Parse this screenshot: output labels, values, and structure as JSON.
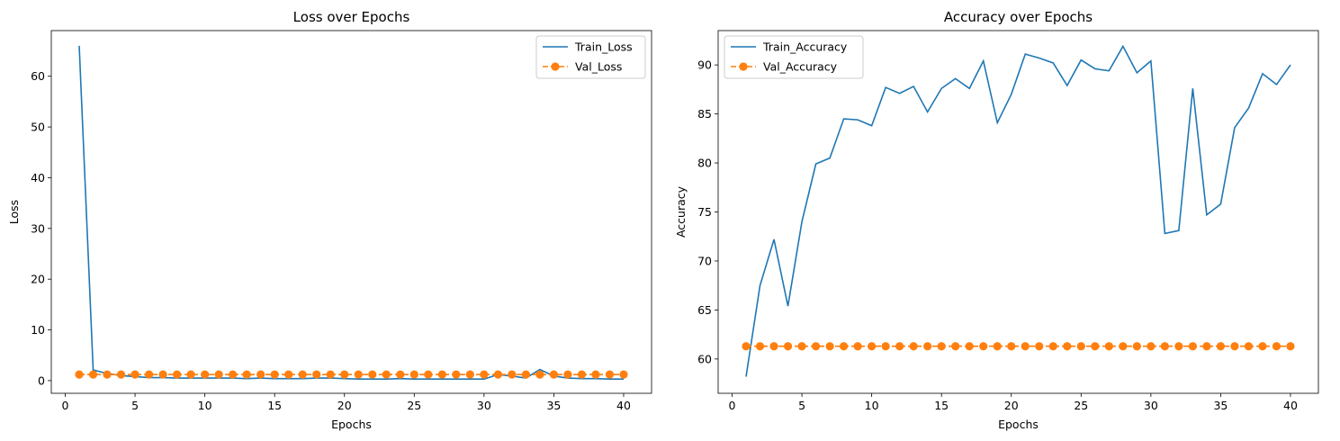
{
  "chart_data": [
    {
      "type": "line",
      "title": "Loss over Epochs",
      "xlabel": "Epochs",
      "ylabel": "Loss",
      "xlim": [
        -1,
        42
      ],
      "ylim": [
        -2.5,
        69
      ],
      "xticks": [
        0,
        5,
        10,
        15,
        20,
        25,
        30,
        35,
        40
      ],
      "yticks": [
        0,
        10,
        20,
        30,
        40,
        50,
        60
      ],
      "grid": false,
      "legend_position": "upper right",
      "series": [
        {
          "name": "Train_Loss",
          "color": "#1f77b4",
          "style": "solid",
          "marker": "none",
          "x": [
            1,
            2,
            3,
            4,
            5,
            6,
            7,
            8,
            9,
            10,
            11,
            12,
            13,
            14,
            15,
            16,
            17,
            18,
            19,
            20,
            21,
            22,
            23,
            24,
            25,
            26,
            27,
            28,
            29,
            30,
            31,
            32,
            33,
            34,
            35,
            36,
            37,
            38,
            39,
            40
          ],
          "values": [
            66.0,
            2.1,
            1.4,
            1.0,
            0.8,
            0.6,
            0.6,
            0.5,
            0.5,
            0.5,
            0.5,
            0.5,
            0.4,
            0.5,
            0.4,
            0.4,
            0.4,
            0.5,
            0.5,
            0.4,
            0.3,
            0.3,
            0.3,
            0.4,
            0.3,
            0.3,
            0.3,
            0.3,
            0.3,
            0.3,
            1.2,
            0.9,
            0.5,
            2.2,
            0.9,
            0.5,
            0.4,
            0.4,
            0.3,
            0.3
          ]
        },
        {
          "name": "Val_Loss",
          "color": "#ff7f0e",
          "style": "dashed",
          "marker": "circle",
          "x": [
            1,
            2,
            3,
            4,
            5,
            6,
            7,
            8,
            9,
            10,
            11,
            12,
            13,
            14,
            15,
            16,
            17,
            18,
            19,
            20,
            21,
            22,
            23,
            24,
            25,
            26,
            27,
            28,
            29,
            30,
            31,
            32,
            33,
            34,
            35,
            36,
            37,
            38,
            39,
            40
          ],
          "values": [
            1.2,
            1.2,
            1.2,
            1.2,
            1.2,
            1.2,
            1.2,
            1.2,
            1.2,
            1.2,
            1.2,
            1.2,
            1.2,
            1.2,
            1.2,
            1.2,
            1.2,
            1.2,
            1.2,
            1.2,
            1.2,
            1.2,
            1.2,
            1.2,
            1.2,
            1.2,
            1.2,
            1.2,
            1.2,
            1.2,
            1.2,
            1.2,
            1.2,
            1.2,
            1.2,
            1.2,
            1.2,
            1.2,
            1.2,
            1.2
          ]
        }
      ]
    },
    {
      "type": "line",
      "title": "Accuracy over Epochs",
      "xlabel": "Epochs",
      "ylabel": "Accuracy",
      "xlim": [
        -1,
        42
      ],
      "ylim": [
        56.5,
        93.5
      ],
      "xticks": [
        0,
        5,
        10,
        15,
        20,
        25,
        30,
        35,
        40
      ],
      "yticks": [
        60,
        65,
        70,
        75,
        80,
        85,
        90
      ],
      "grid": false,
      "legend_position": "upper left",
      "series": [
        {
          "name": "Train_Accuracy",
          "color": "#1f77b4",
          "style": "solid",
          "marker": "none",
          "x": [
            1,
            2,
            3,
            4,
            5,
            6,
            7,
            8,
            9,
            10,
            11,
            12,
            13,
            14,
            15,
            16,
            17,
            18,
            19,
            20,
            21,
            22,
            23,
            24,
            25,
            26,
            27,
            28,
            29,
            30,
            31,
            32,
            33,
            34,
            35,
            36,
            37,
            38,
            39,
            40
          ],
          "values": [
            58.2,
            67.5,
            72.2,
            65.4,
            74.0,
            79.9,
            80.5,
            84.5,
            84.4,
            83.8,
            87.7,
            87.1,
            87.8,
            85.2,
            87.6,
            88.6,
            87.6,
            90.4,
            84.1,
            87.0,
            91.1,
            90.7,
            90.2,
            87.9,
            90.5,
            89.6,
            89.4,
            91.9,
            89.2,
            90.4,
            72.8,
            73.1,
            87.6,
            74.7,
            75.8,
            83.6,
            85.6,
            89.1,
            88.0,
            90.0
          ]
        },
        {
          "name": "Val_Accuracy",
          "color": "#ff7f0e",
          "style": "dashed",
          "marker": "circle",
          "x": [
            1,
            2,
            3,
            4,
            5,
            6,
            7,
            8,
            9,
            10,
            11,
            12,
            13,
            14,
            15,
            16,
            17,
            18,
            19,
            20,
            21,
            22,
            23,
            24,
            25,
            26,
            27,
            28,
            29,
            30,
            31,
            32,
            33,
            34,
            35,
            36,
            37,
            38,
            39,
            40
          ],
          "values": [
            61.3,
            61.3,
            61.3,
            61.3,
            61.3,
            61.3,
            61.3,
            61.3,
            61.3,
            61.3,
            61.3,
            61.3,
            61.3,
            61.3,
            61.3,
            61.3,
            61.3,
            61.3,
            61.3,
            61.3,
            61.3,
            61.3,
            61.3,
            61.3,
            61.3,
            61.3,
            61.3,
            61.3,
            61.3,
            61.3,
            61.3,
            61.3,
            61.3,
            61.3,
            61.3,
            61.3,
            61.3,
            61.3,
            61.3,
            61.3
          ]
        }
      ]
    }
  ]
}
